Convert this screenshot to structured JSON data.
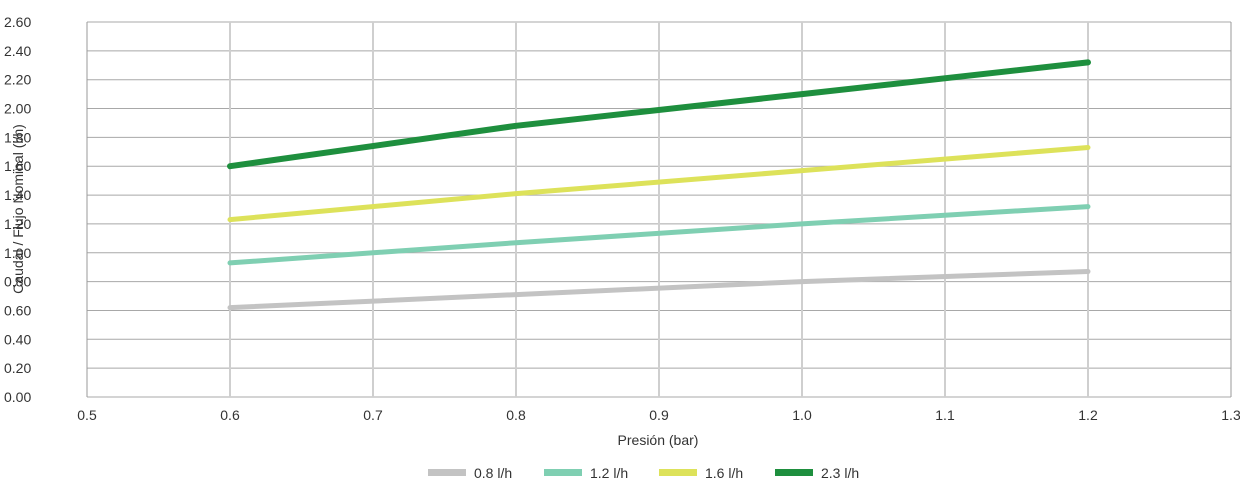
{
  "chart_data": {
    "type": "line",
    "title": "",
    "xlabel": "Presión (bar)",
    "ylabel": "Caudal / Flujo Nominal (l/h)",
    "xlim": [
      0.5,
      1.3
    ],
    "ylim": [
      0,
      2.6
    ],
    "x_ticks": [
      "0.5",
      "0.6",
      "0.7",
      "0.8",
      "0.9",
      "1.0",
      "1.1",
      "1.2",
      "1.3"
    ],
    "y_ticks": [
      "0.00",
      "0.20",
      "0.40",
      "0.60",
      "0.80",
      "1.00",
      "1.20",
      "1.40",
      "1.60",
      "1.80",
      "2.00",
      "2.20",
      "2.40",
      "2.60"
    ],
    "grid": true,
    "legend_position": "bottom",
    "x": [
      0.6,
      0.8,
      1.0,
      1.2
    ],
    "series": [
      {
        "name": "0.8 l/h",
        "color": "#c3c3c3",
        "values": [
          0.62,
          0.71,
          0.8,
          0.87
        ]
      },
      {
        "name": "1.2 l/h",
        "color": "#7fcfb2",
        "values": [
          0.93,
          1.07,
          1.2,
          1.32
        ]
      },
      {
        "name": "1.6 l/h",
        "color": "#dde25a",
        "values": [
          1.23,
          1.41,
          1.57,
          1.73
        ]
      },
      {
        "name": "2.3 l/h",
        "color": "#1e8f3e",
        "values": [
          1.6,
          1.88,
          2.1,
          2.32
        ]
      }
    ]
  }
}
